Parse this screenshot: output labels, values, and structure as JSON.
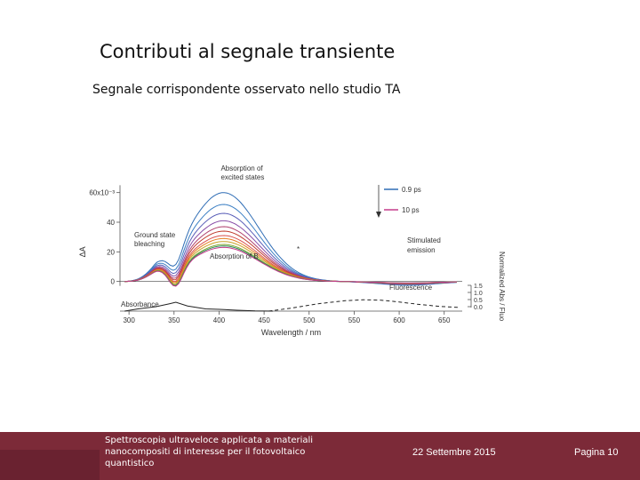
{
  "slide": {
    "title": "Contributi al segnale transiente",
    "subtitle": "Segnale corrispondente osservato nello studio TA",
    "footer_text": "Spettroscopia ultraveloce applicata a materiali nanocompositi di interesse per il fotovoltaico quantistico",
    "footer_date": "22 Settembre 2015",
    "footer_page": "Pagina 10",
    "colors": {
      "footer_bg": "#7c2a38",
      "footer_strip": "#6a2230"
    }
  },
  "chart_data": {
    "type": "line",
    "xlabel": "Wavelength / nm",
    "ylabel": "ΔA",
    "y2label": "Normalized Abs / Fluo",
    "x_ticks": [
      "300",
      "350",
      "400",
      "450",
      "500",
      "550",
      "600",
      "650"
    ],
    "y_ticks": [
      "60x10⁻³",
      "40",
      "20",
      "0"
    ],
    "y2_ticks": [
      "1.5",
      "1.0",
      "0.5",
      "0.0"
    ],
    "xlim": [
      290,
      670
    ],
    "ylim": [
      -20,
      70
    ],
    "legend": [
      {
        "label": "0.9 ps",
        "color": "#2f6db5"
      },
      {
        "label": "10 ps",
        "color": "#c43a8a"
      }
    ],
    "legend_position": "top-right",
    "annotations": {
      "excited": "Absorption of excited states",
      "ground": "Ground state bleaching",
      "absB": "Absorption of B",
      "stim": "Stimulated emission",
      "fluo": "Fluorescence",
      "abs": "Absorbance",
      "star": "*"
    },
    "series_note": "family of transient spectra from 0.9 ps (blue, largest) to 10 ps (magenta)",
    "transient_series": [
      {
        "label": "0.9 ps",
        "color": "#2f6db5",
        "peak": 60
      },
      {
        "color": "#3b7fc4",
        "peak": 52
      },
      {
        "color": "#5a5fb8",
        "peak": 46
      },
      {
        "color": "#8a4fa8",
        "peak": 41
      },
      {
        "color": "#b0406e",
        "peak": 37
      },
      {
        "color": "#c0392b",
        "peak": 34
      },
      {
        "color": "#d9534f",
        "peak": 31
      },
      {
        "color": "#e67e22",
        "peak": 29
      },
      {
        "color": "#c9a227",
        "peak": 27
      },
      {
        "color": "#7fa832",
        "peak": 25
      },
      {
        "color": "#2e8b57",
        "peak": 24
      },
      {
        "label": "10 ps",
        "color": "#c43a8a",
        "peak": 23
      }
    ],
    "absorbance_points": [
      [
        295,
        -20
      ],
      [
        310,
        -18.5
      ],
      [
        330,
        -17
      ],
      [
        345,
        -15
      ],
      [
        352,
        -14
      ],
      [
        365,
        -16.5
      ],
      [
        385,
        -18.5
      ],
      [
        400,
        -18.8
      ],
      [
        420,
        -19.4
      ],
      [
        440,
        -19.9
      ],
      [
        460,
        -20
      ]
    ],
    "fluorescence_points": [
      [
        455,
        -20
      ],
      [
        480,
        -18
      ],
      [
        510,
        -15
      ],
      [
        540,
        -13
      ],
      [
        560,
        -12.3
      ],
      [
        580,
        -12.6
      ],
      [
        600,
        -13.8
      ],
      [
        620,
        -15.3
      ],
      [
        645,
        -16.8
      ],
      [
        665,
        -17.5
      ]
    ]
  }
}
